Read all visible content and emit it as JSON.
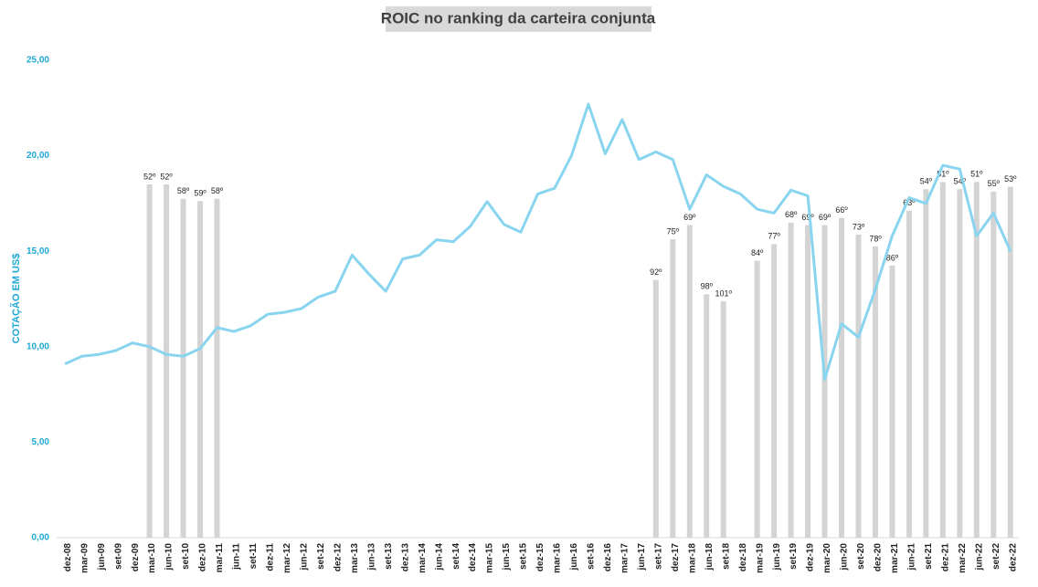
{
  "chart_data": {
    "type": "bar-line",
    "title": "ROIC no ranking da carteira conjunta",
    "y_axis_label": "COTAÇÃO EM US$",
    "categories": [
      "dez-08",
      "mar-09",
      "jun-09",
      "set-09",
      "dez-09",
      "mar-10",
      "jun-10",
      "set-10",
      "dez-10",
      "mar-11",
      "jun-11",
      "set-11",
      "dez-11",
      "mar-12",
      "jun-12",
      "set-12",
      "dez-12",
      "mar-13",
      "jun-13",
      "set-13",
      "dez-13",
      "mar-14",
      "jun-14",
      "set-14",
      "dez-14",
      "mar-15",
      "jun-15",
      "set-15",
      "dez-15",
      "mar-16",
      "jun-16",
      "set-16",
      "dez-16",
      "mar-17",
      "jun-17",
      "set-17",
      "dez-17",
      "mar-18",
      "jun-18",
      "set-18",
      "dez-18",
      "mar-19",
      "jun-19",
      "set-19",
      "dez-19",
      "mar-20",
      "jun-20",
      "set-20",
      "dez-20",
      "mar-21",
      "jun-21",
      "set-21",
      "dez-21",
      "mar-22",
      "jun-22",
      "set-22",
      "dez-22"
    ],
    "series": [
      {
        "name": "Ranking",
        "type": "bar",
        "axis": "y2",
        "color": "#d4d4d4",
        "values": [
          null,
          null,
          null,
          null,
          null,
          52,
          52,
          58,
          59,
          58,
          null,
          null,
          null,
          null,
          null,
          null,
          null,
          null,
          null,
          null,
          null,
          null,
          null,
          null,
          null,
          null,
          null,
          null,
          null,
          null,
          null,
          null,
          null,
          null,
          null,
          92,
          75,
          69,
          98,
          101,
          null,
          84,
          77,
          68,
          69,
          69,
          66,
          73,
          78,
          86,
          63,
          54,
          51,
          54,
          51,
          55,
          53
        ],
        "value_labels": [
          null,
          null,
          null,
          null,
          null,
          "52º",
          "52º",
          "58º",
          "59º",
          "58º",
          null,
          null,
          null,
          null,
          null,
          null,
          null,
          null,
          null,
          null,
          null,
          null,
          null,
          null,
          null,
          null,
          null,
          null,
          null,
          null,
          null,
          null,
          null,
          null,
          null,
          "92º",
          "75º",
          "69º",
          "98º",
          "101º",
          null,
          "84º",
          "77º",
          "68º",
          "69º",
          "69º",
          "66º",
          "73º",
          "78º",
          "86º",
          "63º",
          "54º",
          "51º",
          "54º",
          "51º",
          "55º",
          "53º"
        ]
      },
      {
        "name": "Cotação",
        "type": "line",
        "color": "#89d4ef",
        "values": [
          9.1,
          9.5,
          9.6,
          9.8,
          10.2,
          10.0,
          9.6,
          9.5,
          9.9,
          11.0,
          10.8,
          11.1,
          11.7,
          11.8,
          12.0,
          12.6,
          12.9,
          14.8,
          13.8,
          12.9,
          14.6,
          14.8,
          15.6,
          15.5,
          16.3,
          17.6,
          16.4,
          16.0,
          18.0,
          18.3,
          20.0,
          22.7,
          20.1,
          21.9,
          19.8,
          20.2,
          19.8,
          17.2,
          19.0,
          18.4,
          18.0,
          17.2,
          17.0,
          18.2,
          17.9,
          8.3,
          11.2,
          10.5,
          13.0,
          15.8,
          17.8,
          17.5,
          19.5,
          19.3,
          15.8,
          17.0,
          15.0
        ]
      }
    ],
    "ylim": [
      0,
      25
    ],
    "yticks": [
      {
        "value": 0,
        "label": "0,00"
      },
      {
        "value": 5,
        "label": "5,00"
      },
      {
        "value": 10,
        "label": "10,00"
      },
      {
        "value": 15,
        "label": "15,00"
      },
      {
        "value": 20,
        "label": "20,00"
      },
      {
        "value": 25,
        "label": "25,00"
      }
    ],
    "y2lim": [
      200,
      0
    ]
  }
}
